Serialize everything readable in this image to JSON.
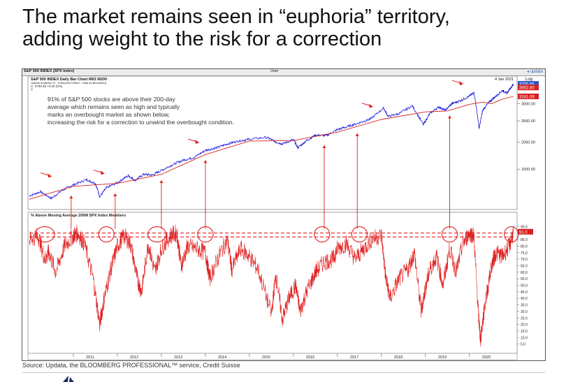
{
  "slide": {
    "title_line1": "The market  remains seen in “euphoria” territory,",
    "title_line2": "adding weight to the risk for a correction",
    "source": "Source: Updata, the BLOOMBERG PROFESSIONAL™ service, Credit Suisse"
  },
  "chart_header": {
    "left": "S&P 500 INDEX (SPX Index)",
    "center": "User",
    "right": "◂ updata"
  },
  "chart_data": [
    {
      "type": "line",
      "panel": "top",
      "meta_lines": [
        "S&P 500 INDEX Daily Bar Chart  M63    M200",
        "Updata Analytics 10 - Enterprise Edition : Data by Bloomberg",
        "C: 3700.65  +0.00 (0%)",
        "T:"
      ],
      "date_label": "4 Jan 2021",
      "scale_label": "Log",
      "log_scale": true,
      "ylim": [
        1000,
        3900
      ],
      "y_ticks": [
        "3000.00",
        "2500.00",
        "2000.00",
        "1500.00"
      ],
      "y_tick_values": [
        3000,
        2500,
        2000,
        1500
      ],
      "value_tags": [
        {
          "text": "3700.65",
          "value": 3700.65,
          "color": "#2f54c8"
        },
        {
          "text": "3562.80",
          "value": 3562.8,
          "color": "#d62020"
        },
        {
          "text": "3241.09",
          "value": 3241.09,
          "color": "#d62020"
        }
      ],
      "annotation": "91% of S&P 500 stocks are above their 200-day average which remains seen as high and typically marks an overbought market as shown below, increasing the risk for a correction to unwind the overbought condition.",
      "series": [
        {
          "color": "#1a1adc",
          "x": [
            2010.0,
            2010.25,
            2010.5,
            2010.75,
            2011.0,
            2011.3,
            2011.5,
            2011.6,
            2011.75,
            2012.0,
            2012.25,
            2012.4,
            2012.6,
            2012.8,
            2013.0,
            2013.25,
            2013.5,
            2013.75,
            2014.0,
            2014.25,
            2014.5,
            2014.75,
            2015.0,
            2015.4,
            2015.6,
            2015.75,
            2016.0,
            2016.1,
            2016.3,
            2016.5,
            2016.75,
            2017.0,
            2017.25,
            2017.5,
            2017.75,
            2018.05,
            2018.15,
            2018.4,
            2018.7,
            2018.95,
            2019.1,
            2019.3,
            2019.45,
            2019.6,
            2019.8,
            2020.0,
            2020.1,
            2020.22,
            2020.3,
            2020.45,
            2020.6,
            2020.75,
            2020.85,
            2021.0
          ],
          "y": [
            1130,
            1180,
            1100,
            1200,
            1270,
            1340,
            1290,
            1120,
            1230,
            1300,
            1400,
            1330,
            1420,
            1410,
            1480,
            1570,
            1650,
            1700,
            1830,
            1880,
            1960,
            2020,
            2060,
            2100,
            2000,
            1960,
            2050,
            1880,
            2030,
            2150,
            2140,
            2280,
            2360,
            2450,
            2550,
            2860,
            2620,
            2700,
            2930,
            2400,
            2700,
            2900,
            2800,
            3000,
            3100,
            3250,
            3380,
            2300,
            2800,
            3050,
            3250,
            3450,
            3350,
            3700
          ]
        },
        {
          "color": "#d62020",
          "x": [
            2010.0,
            2011.0,
            2012.0,
            2013.0,
            2014.0,
            2015.0,
            2016.0,
            2017.0,
            2018.0,
            2019.0,
            2019.5,
            2020.0,
            2020.3,
            2020.5,
            2020.75,
            2021.0
          ],
          "y": [
            1090,
            1250,
            1290,
            1420,
            1750,
            2020,
            2030,
            2220,
            2540,
            2750,
            2780,
            2980,
            3050,
            3000,
            3150,
            3241
          ]
        }
      ]
    },
    {
      "type": "line",
      "panel": "bottom",
      "title": "% Above Moving Average 200M SPX Index Members",
      "ylim": [
        0,
        100
      ],
      "y_ticks": [
        "95.0",
        "90.0",
        "85.0",
        "80.0",
        "75.0",
        "70.0",
        "65.0",
        "60.0",
        "55.0",
        "50.0",
        "45.0",
        "40.0",
        "35.0",
        "30.0",
        "25.0",
        "20.0",
        "15.0",
        "10.0",
        "5.0"
      ],
      "y_tick_values": [
        95,
        90,
        85,
        80,
        75,
        70,
        65,
        60,
        55,
        50,
        45,
        40,
        35,
        30,
        25,
        20,
        15,
        10,
        5
      ],
      "value_tag": {
        "text": "91.0",
        "value": 91,
        "color": "#d62020"
      },
      "thresholds": [
        90,
        87
      ],
      "x_ticks": [
        "2011",
        "2012",
        "2013",
        "2014",
        "2015",
        "2016",
        "2017",
        "2018",
        "2019",
        "2020"
      ],
      "x_tick_values": [
        2011,
        2012,
        2013,
        2014,
        2015,
        2016,
        2017,
        2018,
        2019,
        2020
      ],
      "xlim": [
        2010.0,
        2021.05
      ],
      "series": [
        {
          "color": "#e02020",
          "x": [
            2010.0,
            2010.2,
            2010.35,
            2010.45,
            2010.6,
            2010.8,
            2011.0,
            2011.1,
            2011.25,
            2011.45,
            2011.6,
            2011.7,
            2011.85,
            2012.0,
            2012.15,
            2012.3,
            2012.45,
            2012.55,
            2012.7,
            2012.85,
            2013.0,
            2013.2,
            2013.35,
            2013.45,
            2013.6,
            2013.8,
            2014.0,
            2014.1,
            2014.3,
            2014.5,
            2014.6,
            2014.8,
            2015.0,
            2015.2,
            2015.5,
            2015.6,
            2015.75,
            2015.9,
            2016.05,
            2016.15,
            2016.3,
            2016.5,
            2016.7,
            2016.9,
            2017.0,
            2017.2,
            2017.4,
            2017.6,
            2017.8,
            2018.0,
            2018.1,
            2018.2,
            2018.4,
            2018.6,
            2018.75,
            2018.9,
            2019.0,
            2019.1,
            2019.25,
            2019.4,
            2019.55,
            2019.7,
            2019.85,
            2020.0,
            2020.1,
            2020.2,
            2020.25,
            2020.35,
            2020.5,
            2020.6,
            2020.75,
            2020.9,
            2021.0
          ],
          "y": [
            85,
            88,
            70,
            75,
            60,
            80,
            88,
            90,
            82,
            55,
            20,
            40,
            62,
            80,
            88,
            82,
            55,
            45,
            82,
            60,
            78,
            88,
            90,
            65,
            80,
            78,
            75,
            55,
            72,
            85,
            62,
            78,
            72,
            62,
            28,
            58,
            24,
            40,
            50,
            30,
            45,
            60,
            68,
            70,
            78,
            82,
            70,
            78,
            86,
            88,
            55,
            40,
            55,
            62,
            75,
            30,
            48,
            62,
            72,
            50,
            78,
            60,
            82,
            90,
            88,
            30,
            8,
            35,
            65,
            75,
            72,
            80,
            91
          ]
        }
      ]
    }
  ]
}
